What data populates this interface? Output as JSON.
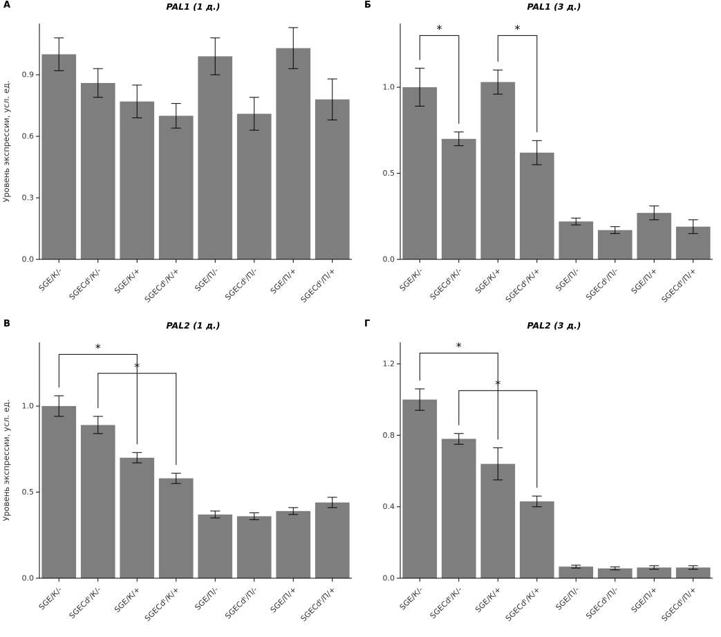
{
  "figure": {
    "background": "#ffffff",
    "bar_color": "#7e7e7e",
    "axis_color": "#000000",
    "text_color": "#333333"
  },
  "chart_data": [
    {
      "panel": "А",
      "type": "bar",
      "title": "PAL1 (1 д.)",
      "ylabel": "Уровень экспрессии, усл. ед.",
      "xlabel": "",
      "categories": [
        "SGE/К/-",
        "SGECdᵗ/К/-",
        "SGE/К/+",
        "SGECdᵗ/К/+",
        "SGE/П/-",
        "SGECdᵗ/П/-",
        "SGE/П/+",
        "SGECdᵗ/П/+"
      ],
      "values": [
        1.0,
        0.86,
        0.77,
        0.7,
        0.99,
        0.71,
        1.03,
        0.78
      ],
      "errors": [
        0.08,
        0.07,
        0.08,
        0.06,
        0.09,
        0.08,
        0.1,
        0.1
      ],
      "yticks": [
        0,
        0.3,
        0.6,
        0.9
      ],
      "ytick_labels": [
        "0.0",
        "0.3",
        "0.6",
        "0.9"
      ],
      "ylim": [
        0,
        1.15
      ],
      "grid": "off",
      "legend": "none",
      "significance": []
    },
    {
      "panel": "Б",
      "type": "bar",
      "title": "PAL1 (3 д.)",
      "xlabel": "",
      "categories": [
        "SGE/К/-",
        "SGECdᵗ/К/-",
        "SGE/К/+",
        "SGECdᵗ/К/+",
        "SGE/П/-",
        "SGECdᵗ/П/-",
        "SGE/П/+",
        "SGECdᵗ/П/+"
      ],
      "values": [
        1.0,
        0.7,
        1.03,
        0.62,
        0.22,
        0.17,
        0.27,
        0.19
      ],
      "errors": [
        0.11,
        0.04,
        0.07,
        0.07,
        0.02,
        0.02,
        0.04,
        0.04
      ],
      "yticks": [
        0,
        0.5,
        1.0
      ],
      "ytick_labels": [
        "0.0",
        "0.5",
        "1.0"
      ],
      "ylim": [
        0,
        1.37
      ],
      "grid": "off",
      "legend": "none",
      "significance": [
        {
          "a": 0,
          "b": 1,
          "y": 1.3,
          "label": "*"
        },
        {
          "a": 2,
          "b": 3,
          "y": 1.3,
          "label": "*"
        }
      ]
    },
    {
      "panel": "В",
      "type": "bar",
      "title": "PAL2 (1 д.)",
      "ylabel": "Уровень экспрессии, усл. ед.",
      "xlabel": "",
      "categories": [
        "SGE/К/-",
        "SGECdᵗ/К/-",
        "SGE/К/+",
        "SGECdᵗ/К/+",
        "SGE/П/-",
        "SGECdᵗ/П/-",
        "SGE/П/+",
        "SGECdᵗ/П/+"
      ],
      "values": [
        1.0,
        0.89,
        0.7,
        0.58,
        0.37,
        0.36,
        0.39,
        0.44
      ],
      "errors": [
        0.06,
        0.05,
        0.03,
        0.03,
        0.02,
        0.02,
        0.02,
        0.03
      ],
      "yticks": [
        0,
        0.5,
        1.0
      ],
      "ytick_labels": [
        "0.0",
        "0.5",
        "1.0"
      ],
      "ylim": [
        0,
        1.37
      ],
      "grid": "off",
      "legend": "none",
      "significance": [
        {
          "a": 0,
          "b": 2,
          "y": 1.3,
          "label": "*"
        },
        {
          "a": 1,
          "b": 3,
          "y": 1.19,
          "label": "*"
        }
      ]
    },
    {
      "panel": "Г",
      "type": "bar",
      "title": "PAL2 (3 д.)",
      "xlabel": "",
      "categories": [
        "SGE/К/-",
        "SGECdᵗ/К/-",
        "SGE/К/+",
        "SGECdᵗ/К/+",
        "SGE/П/-",
        "SGECdᵗ/П/-",
        "SGE/П/+",
        "SGECdᵗ/П/+"
      ],
      "values": [
        1.0,
        0.78,
        0.64,
        0.43,
        0.065,
        0.055,
        0.06,
        0.06
      ],
      "errors": [
        0.06,
        0.03,
        0.09,
        0.03,
        0.008,
        0.008,
        0.01,
        0.01
      ],
      "yticks": [
        0,
        0.4,
        0.8,
        1.2
      ],
      "ytick_labels": [
        "0.0",
        "0.4",
        "0.8",
        "1.2"
      ],
      "ylim": [
        0,
        1.32
      ],
      "grid": "off",
      "legend": "none",
      "significance": [
        {
          "a": 0,
          "b": 2,
          "y": 1.26,
          "label": "*"
        },
        {
          "a": 1,
          "b": 3,
          "y": 1.05,
          "label": "*"
        }
      ]
    }
  ]
}
